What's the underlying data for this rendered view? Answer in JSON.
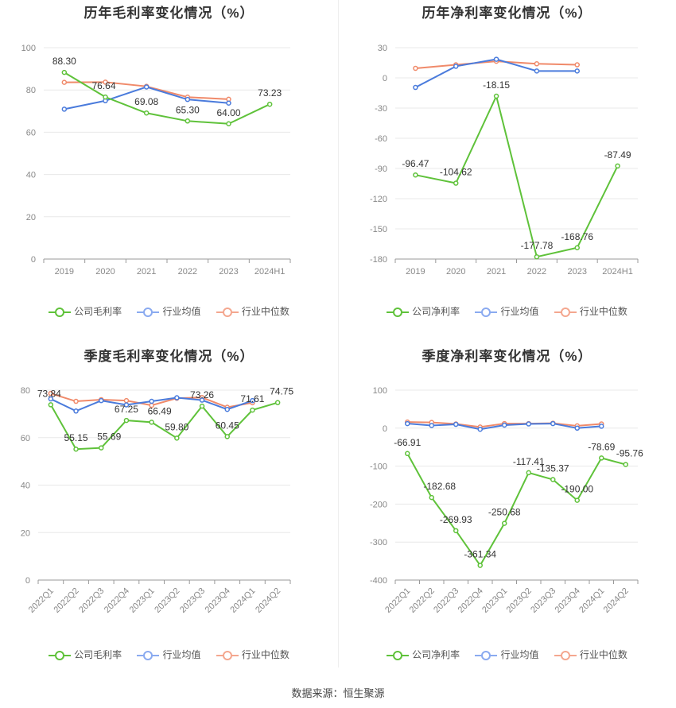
{
  "footer": "数据来源：恒生聚源",
  "legend_labels": {
    "gross": "公司毛利率",
    "net": "公司净利率",
    "ind_avg": "行业均值",
    "ind_median": "行业中位数"
  },
  "colors": {
    "company": "#5fc23a",
    "avg": "#4a7bdc",
    "median": "#f08a6a"
  },
  "chart_data": [
    {
      "type": "line",
      "title": "历年毛利率变化情况（%）",
      "categories": [
        "2019",
        "2020",
        "2021",
        "2022",
        "2023",
        "2024H1"
      ],
      "ylim": [
        0,
        100
      ],
      "yticks": [
        0,
        20,
        40,
        60,
        80,
        100
      ],
      "series": [
        {
          "name": "公司毛利率",
          "values": [
            88.3,
            76.64,
            69.08,
            65.3,
            64.0,
            73.23
          ],
          "labels": [
            "88.30",
            "76.64",
            "69.08",
            "65.30",
            "64.00",
            "73.23"
          ]
        },
        {
          "name": "行业均值",
          "values": [
            70.9,
            74.9,
            81.4,
            75.5,
            73.8,
            null
          ]
        },
        {
          "name": "行业中位数",
          "values": [
            83.6,
            83.7,
            81.7,
            76.6,
            75.6,
            null
          ]
        }
      ]
    },
    {
      "type": "line",
      "title": "历年净利率变化情况（%）",
      "categories": [
        "2019",
        "2020",
        "2021",
        "2022",
        "2023",
        "2024H1"
      ],
      "ylim": [
        -180,
        30
      ],
      "yticks": [
        -180,
        -150,
        -120,
        -90,
        -60,
        -30,
        0,
        30
      ],
      "series": [
        {
          "name": "公司净利率",
          "values": [
            -96.47,
            -104.62,
            -18.15,
            -177.78,
            -168.76,
            -87.49
          ],
          "labels": [
            "-96.47",
            "-104.62",
            "-18.15",
            "-177.78",
            "-168.76",
            "-87.49"
          ]
        },
        {
          "name": "行业均值",
          "values": [
            -9.5,
            11.5,
            18.5,
            6.8,
            6.8,
            null
          ]
        },
        {
          "name": "行业中位数",
          "values": [
            9.5,
            13.0,
            16.5,
            14.0,
            13.0,
            null
          ]
        }
      ]
    },
    {
      "type": "line",
      "title": "季度毛利率变化情况（%）",
      "categories": [
        "2022Q1",
        "2022Q2",
        "2022Q3",
        "2022Q4",
        "2023Q1",
        "2023Q2",
        "2023Q3",
        "2023Q4",
        "2024Q1",
        "2024Q2"
      ],
      "ylim": [
        0,
        80
      ],
      "yticks": [
        0,
        20,
        40,
        60,
        80
      ],
      "series": [
        {
          "name": "公司毛利率",
          "values": [
            73.84,
            55.15,
            55.69,
            67.25,
            66.49,
            59.8,
            73.26,
            60.45,
            71.61,
            74.75
          ],
          "labels": [
            "73.84",
            "55.15",
            "55.69",
            "67.25",
            "66.49",
            "59.80",
            "73.26",
            "60.45",
            "71.61",
            "74.75"
          ]
        },
        {
          "name": "行业均值",
          "values": [
            76.3,
            71.2,
            75.6,
            73.8,
            75.3,
            76.8,
            75.8,
            71.9,
            75.6,
            null
          ]
        },
        {
          "name": "行业中位数",
          "values": [
            78.6,
            75.3,
            76.0,
            75.6,
            73.6,
            76.6,
            76.9,
            72.8,
            74.7,
            null
          ]
        }
      ]
    },
    {
      "type": "line",
      "title": "季度净利率变化情况（%）",
      "categories": [
        "2022Q1",
        "2022Q2",
        "2022Q3",
        "2022Q4",
        "2023Q1",
        "2023Q2",
        "2023Q3",
        "2023Q4",
        "2024Q1",
        "2024Q2"
      ],
      "ylim": [
        -400,
        100
      ],
      "yticks": [
        -400,
        -300,
        -200,
        -100,
        0,
        100
      ],
      "series": [
        {
          "name": "公司净利率",
          "values": [
            -66.91,
            -182.68,
            -269.93,
            -361.34,
            -250.68,
            -117.41,
            -135.37,
            -190.0,
            -78.69,
            -95.76
          ],
          "labels": [
            "-66.91",
            "-182.68",
            "-269.93",
            "-361.34",
            "-250.68",
            "-117.41",
            "-135.37",
            "-190.00",
            "-78.69",
            "-95.76"
          ]
        },
        {
          "name": "行业均值",
          "values": [
            12,
            7,
            10,
            -3,
            8,
            11,
            12,
            0,
            5,
            null
          ]
        },
        {
          "name": "行业中位数",
          "values": [
            16,
            15,
            11,
            3,
            12,
            12,
            13,
            6,
            11,
            null
          ]
        }
      ]
    }
  ]
}
